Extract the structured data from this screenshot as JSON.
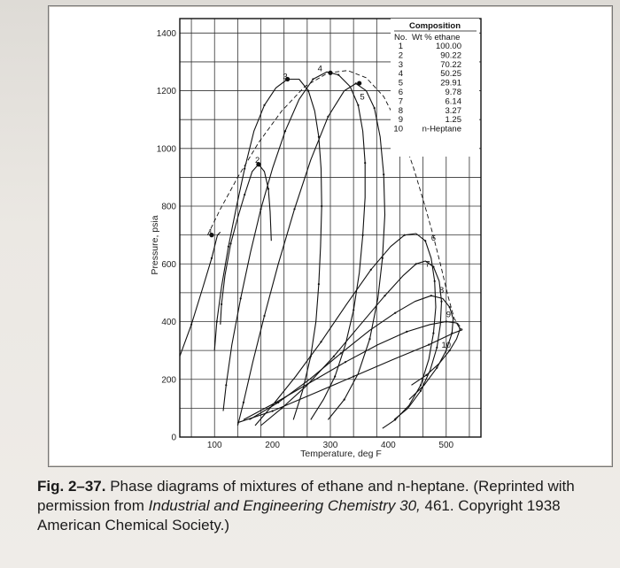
{
  "chart_data": {
    "type": "line",
    "title": "",
    "xlabel": "Temperature, deg F",
    "ylabel": "Pressure, psia",
    "xlim": [
      40,
      560
    ],
    "ylim": [
      0,
      1450
    ],
    "xticks": [
      100,
      200,
      300,
      400,
      500
    ],
    "yticks": [
      0,
      200,
      400,
      600,
      800,
      1000,
      1200,
      1400
    ],
    "grid": true,
    "legend": {
      "title": "Composition",
      "col_no": "No.",
      "col_wt": "Wt % ethane",
      "entries": [
        {
          "no": "1",
          "wt": "100.00"
        },
        {
          "no": "2",
          "wt": "90.22"
        },
        {
          "no": "3",
          "wt": "70.22"
        },
        {
          "no": "4",
          "wt": "50.25"
        },
        {
          "no": "5",
          "wt": "29.91"
        },
        {
          "no": "6",
          "wt": "9.78"
        },
        {
          "no": "7",
          "wt": "6.14"
        },
        {
          "no": "8",
          "wt": "3.27"
        },
        {
          "no": "9",
          "wt": "1.25"
        },
        {
          "no": "10",
          "wt": "n-Heptane"
        }
      ],
      "placement": "top-right"
    },
    "series": [
      {
        "label": "1",
        "x": [
          40,
          60,
          80,
          95,
          105,
          110
        ],
        "y": [
          280,
          390,
          520,
          620,
          700,
          710
        ]
      },
      {
        "label": "2",
        "points": [
          [
            110,
            390
          ],
          [
            112,
            460
          ],
          [
            118,
            560
          ],
          [
            128,
            670
          ],
          [
            140,
            760
          ],
          [
            152,
            840
          ],
          [
            165,
            920
          ],
          [
            176,
            945
          ],
          [
            186,
            920
          ],
          [
            193,
            860
          ],
          [
            196,
            780
          ],
          [
            198,
            680
          ]
        ]
      },
      {
        "label": "3",
        "points": [
          [
            100,
            300
          ],
          [
            104,
            400
          ],
          [
            112,
            520
          ],
          [
            124,
            660
          ],
          [
            138,
            800
          ],
          [
            152,
            930
          ],
          [
            168,
            1060
          ],
          [
            186,
            1150
          ],
          [
            206,
            1210
          ],
          [
            226,
            1240
          ],
          [
            246,
            1240
          ],
          [
            262,
            1200
          ],
          [
            273,
            1130
          ],
          [
            280,
            1040
          ],
          [
            284,
            930
          ],
          [
            285,
            800
          ],
          [
            283,
            660
          ],
          [
            280,
            530
          ],
          [
            275,
            400
          ],
          [
            266,
            280
          ],
          [
            252,
            160
          ],
          [
            236,
            60
          ]
        ]
      },
      {
        "label": "4",
        "points": [
          [
            115,
            90
          ],
          [
            120,
            180
          ],
          [
            130,
            320
          ],
          [
            145,
            480
          ],
          [
            162,
            640
          ],
          [
            180,
            790
          ],
          [
            200,
            930
          ],
          [
            222,
            1060
          ],
          [
            246,
            1170
          ],
          [
            270,
            1240
          ],
          [
            294,
            1265
          ],
          [
            314,
            1255
          ],
          [
            334,
            1215
          ],
          [
            348,
            1150
          ],
          [
            356,
            1060
          ],
          [
            360,
            950
          ],
          [
            360,
            830
          ],
          [
            356,
            700
          ],
          [
            350,
            570
          ],
          [
            340,
            440
          ],
          [
            326,
            320
          ],
          [
            308,
            210
          ],
          [
            288,
            130
          ],
          [
            266,
            60
          ]
        ]
      },
      {
        "label": "5",
        "points": [
          [
            140,
            40
          ],
          [
            150,
            120
          ],
          [
            166,
            260
          ],
          [
            186,
            420
          ],
          [
            210,
            600
          ],
          [
            238,
            790
          ],
          [
            266,
            960
          ],
          [
            296,
            1110
          ],
          [
            324,
            1200
          ],
          [
            344,
            1225
          ],
          [
            362,
            1200
          ],
          [
            376,
            1140
          ],
          [
            386,
            1040
          ],
          [
            392,
            910
          ],
          [
            394,
            770
          ],
          [
            390,
            620
          ],
          [
            382,
            480
          ],
          [
            368,
            340
          ],
          [
            348,
            220
          ],
          [
            324,
            130
          ],
          [
            296,
            60
          ]
        ]
      },
      {
        "label": "6",
        "points": [
          [
            170,
            40
          ],
          [
            200,
            110
          ],
          [
            240,
            210
          ],
          [
            284,
            330
          ],
          [
            328,
            460
          ],
          [
            370,
            580
          ],
          [
            404,
            660
          ],
          [
            428,
            700
          ],
          [
            448,
            705
          ],
          [
            464,
            680
          ],
          [
            474,
            620
          ],
          [
            480,
            540
          ],
          [
            482,
            450
          ],
          [
            478,
            360
          ],
          [
            470,
            270
          ],
          [
            456,
            180
          ],
          [
            436,
            110
          ],
          [
            412,
            60
          ],
          [
            390,
            30
          ]
        ]
      },
      {
        "label": "7",
        "points": [
          [
            180,
            40
          ],
          [
            216,
            100
          ],
          [
            260,
            180
          ],
          [
            306,
            280
          ],
          [
            352,
            390
          ],
          [
            394,
            490
          ],
          [
            426,
            560
          ],
          [
            448,
            600
          ],
          [
            464,
            610
          ],
          [
            478,
            590
          ],
          [
            488,
            540
          ],
          [
            492,
            470
          ],
          [
            490,
            390
          ],
          [
            484,
            310
          ],
          [
            472,
            230
          ],
          [
            456,
            160
          ],
          [
            434,
            100
          ],
          [
            410,
            60
          ]
        ]
      },
      {
        "label": "8",
        "points": [
          [
            160,
            60
          ],
          [
            210,
            120
          ],
          [
            264,
            200
          ],
          [
            318,
            290
          ],
          [
            368,
            370
          ],
          [
            412,
            430
          ],
          [
            446,
            470
          ],
          [
            474,
            490
          ],
          [
            494,
            480
          ],
          [
            506,
            450
          ],
          [
            512,
            410
          ],
          [
            510,
            360
          ],
          [
            500,
            300
          ],
          [
            484,
            240
          ],
          [
            462,
            180
          ],
          [
            436,
            130
          ]
        ]
      },
      {
        "label": "9",
        "points": [
          [
            150,
            60
          ],
          [
            206,
            120
          ],
          [
            266,
            190
          ],
          [
            326,
            260
          ],
          [
            382,
            320
          ],
          [
            432,
            365
          ],
          [
            472,
            390
          ],
          [
            500,
            400
          ],
          [
            518,
            395
          ],
          [
            524,
            375
          ],
          [
            518,
            340
          ],
          [
            506,
            300
          ],
          [
            488,
            255
          ],
          [
            466,
            215
          ],
          [
            440,
            180
          ]
        ]
      },
      {
        "label": "10",
        "points": [
          [
            140,
            50
          ],
          [
            200,
            90
          ],
          [
            270,
            150
          ],
          [
            340,
            210
          ],
          [
            410,
            270
          ],
          [
            470,
            320
          ],
          [
            512,
            360
          ],
          [
            528,
            372
          ]
        ]
      },
      {
        "label": "critical locus",
        "points": [
          [
            88,
            700
          ],
          [
            110,
            790
          ],
          [
            140,
            900
          ],
          [
            176,
            1020
          ],
          [
            216,
            1130
          ],
          [
            256,
            1215
          ],
          [
            296,
            1262
          ],
          [
            330,
            1270
          ],
          [
            362,
            1245
          ],
          [
            392,
            1180
          ],
          [
            420,
            1070
          ],
          [
            444,
            930
          ],
          [
            462,
            810
          ],
          [
            476,
            710
          ],
          [
            490,
            600
          ],
          [
            503,
            490
          ],
          [
            514,
            410
          ],
          [
            528,
            372
          ]
        ]
      }
    ],
    "critical_markers": [
      {
        "label": "1",
        "x": 95,
        "y": 700
      },
      {
        "label": "2",
        "x": 176,
        "y": 945
      },
      {
        "label": "3",
        "x": 226,
        "y": 1240
      },
      {
        "label": "4",
        "x": 300,
        "y": 1262
      },
      {
        "label": "5",
        "x": 350,
        "y": 1226
      }
    ],
    "curve_labels": [
      {
        "label": "1",
        "x": 93,
        "y": 700
      },
      {
        "label": "2",
        "x": 174,
        "y": 950
      },
      {
        "label": "3",
        "x": 222,
        "y": 1240
      },
      {
        "label": "4",
        "x": 282,
        "y": 1268
      },
      {
        "label": "5",
        "x": 355,
        "y": 1170
      },
      {
        "label": "6",
        "x": 478,
        "y": 680
      },
      {
        "label": "7",
        "x": 468,
        "y": 590
      },
      {
        "label": "8",
        "x": 492,
        "y": 500
      },
      {
        "label": "9",
        "x": 504,
        "y": 415
      },
      {
        "label": "10",
        "x": 500,
        "y": 310
      }
    ]
  },
  "caption": {
    "fig_label": "Fig. 2–37.",
    "text_1": " Phase diagrams of mixtures of ethane and n-heptane. (Reprinted with permission from ",
    "journal": "Industrial and Engineering Chemistry 30,",
    "text_2": " 461. Copyright 1938 American Chemical Society.)"
  }
}
